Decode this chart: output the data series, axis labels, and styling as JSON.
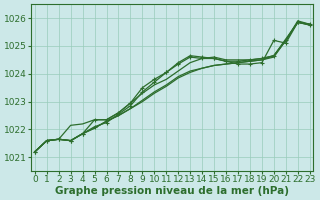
{
  "xlabel": "Graphe pression niveau de la mer (hPa)",
  "ylim": [
    1020.5,
    1026.5
  ],
  "xlim": [
    -0.3,
    23.3
  ],
  "yticks": [
    1021,
    1022,
    1023,
    1024,
    1025,
    1026
  ],
  "xticks": [
    0,
    1,
    2,
    3,
    4,
    5,
    6,
    7,
    8,
    9,
    10,
    11,
    12,
    13,
    14,
    15,
    16,
    17,
    18,
    19,
    20,
    21,
    22,
    23
  ],
  "background_color": "#cce8e8",
  "grid_color": "#99ccbb",
  "line_color": "#2d6e2d",
  "lines": [
    {
      "y": [
        1021.2,
        1021.6,
        1021.65,
        1021.6,
        1021.85,
        1022.05,
        1022.3,
        1022.5,
        1022.75,
        1023.0,
        1023.3,
        1023.55,
        1023.85,
        1024.05,
        1024.2,
        1024.3,
        1024.35,
        1024.4,
        1024.45,
        1024.5,
        1024.6,
        1025.2,
        1025.85,
        1025.75
      ],
      "marker": false,
      "lw": 0.9
    },
    {
      "y": [
        1021.2,
        1021.6,
        1021.65,
        1021.6,
        1021.85,
        1022.05,
        1022.3,
        1022.5,
        1022.75,
        1023.05,
        1023.35,
        1023.6,
        1023.9,
        1024.1,
        1024.2,
        1024.3,
        1024.35,
        1024.4,
        1024.45,
        1024.5,
        1024.65,
        1025.25,
        1025.85,
        1025.78
      ],
      "marker": false,
      "lw": 0.9
    },
    {
      "y": [
        1021.2,
        1021.6,
        1021.65,
        1022.15,
        1022.2,
        1022.35,
        1022.35,
        1022.6,
        1022.95,
        1023.3,
        1023.6,
        1023.8,
        1024.1,
        1024.4,
        1024.55,
        1024.6,
        1024.5,
        1024.5,
        1024.5,
        1024.55,
        1024.65,
        1025.2,
        1025.9,
        1025.78
      ],
      "marker": false,
      "lw": 0.9
    },
    {
      "y": [
        1021.2,
        1021.6,
        1021.65,
        1021.6,
        1021.85,
        1022.35,
        1022.35,
        1022.6,
        1022.95,
        1023.5,
        1023.8,
        1024.05,
        1024.35,
        1024.6,
        1024.55,
        1024.55,
        1024.45,
        1024.45,
        1024.5,
        1024.55,
        1024.65,
        1025.2,
        1025.85,
        1025.78
      ],
      "marker": true,
      "lw": 0.9
    },
    {
      "y": [
        1021.2,
        1021.6,
        1021.65,
        1021.6,
        1021.85,
        1022.1,
        1022.25,
        1022.55,
        1022.85,
        1023.35,
        1023.7,
        1024.05,
        1024.4,
        1024.65,
        1024.6,
        1024.55,
        1024.45,
        1024.35,
        1024.35,
        1024.4,
        1025.2,
        1025.1,
        1025.85,
        1025.75
      ],
      "marker": true,
      "lw": 0.9
    }
  ],
  "font_color": "#2d6e2d",
  "tick_fontsize": 6.5,
  "label_fontsize": 7.5
}
